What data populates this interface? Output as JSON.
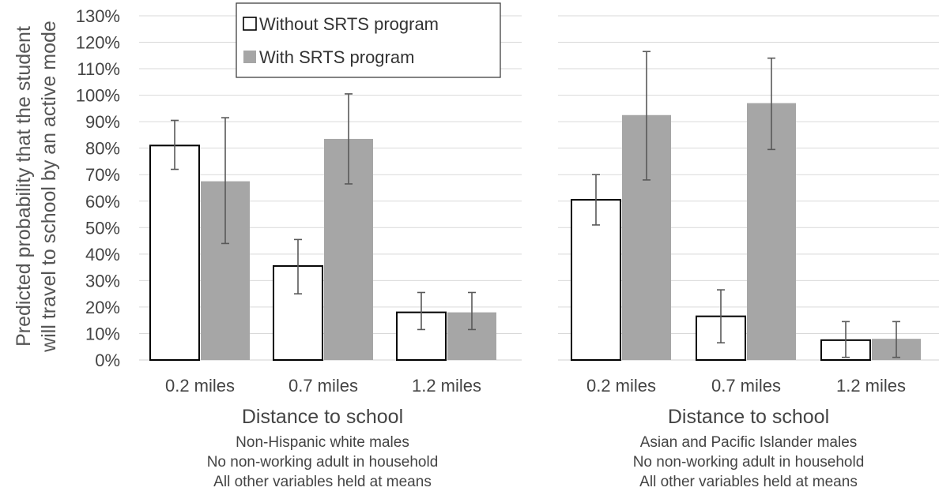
{
  "chart_data": {
    "type": "bar",
    "y_axis": {
      "label_lines": [
        "Predicted probability that the student",
        "will travel to school by an active mode"
      ],
      "ylim": [
        0,
        130
      ],
      "tick_step": 10,
      "tick_suffix": "%"
    },
    "legend": {
      "position": "top-center",
      "items": [
        {
          "name": "Without SRTS program",
          "fill": "#ffffff",
          "stroke": "#000000"
        },
        {
          "name": "With SRTS program",
          "fill": "#a6a6a6",
          "stroke": "none"
        }
      ]
    },
    "error_bar_color": "#595959",
    "panels": [
      {
        "xlabel": "Distance to school",
        "notes": [
          "Non-Hispanic white males",
          "No non-working adult in household",
          "All other variables held at means"
        ],
        "categories": [
          "0.2 miles",
          "0.7 miles",
          "1.2 miles"
        ],
        "series": [
          {
            "name": "Without SRTS program",
            "values": [
              81,
              35.5,
              18
            ],
            "err_low": [
              72,
              25,
              11.5
            ],
            "err_high": [
              90.5,
              45.5,
              25.5
            ]
          },
          {
            "name": "With SRTS program",
            "values": [
              67.5,
              83.5,
              18
            ],
            "err_low": [
              44,
              66.5,
              11.5
            ],
            "err_high": [
              91.5,
              100.5,
              25.5
            ]
          }
        ]
      },
      {
        "xlabel": "Distance to school",
        "notes": [
          "Asian and Pacific Islander males",
          "No non-working adult in household",
          "All other variables held at means"
        ],
        "categories": [
          "0.2 miles",
          "0.7 miles",
          "1.2 miles"
        ],
        "series": [
          {
            "name": "Without SRTS program",
            "values": [
              60.5,
              16.5,
              7.5
            ],
            "err_low": [
              51,
              6.5,
              1
            ],
            "err_high": [
              70,
              26.5,
              14.5
            ]
          },
          {
            "name": "With SRTS program",
            "values": [
              92.5,
              97,
              8
            ],
            "err_low": [
              68,
              79.5,
              1
            ],
            "err_high": [
              116.5,
              114,
              14.5
            ]
          }
        ]
      }
    ]
  }
}
